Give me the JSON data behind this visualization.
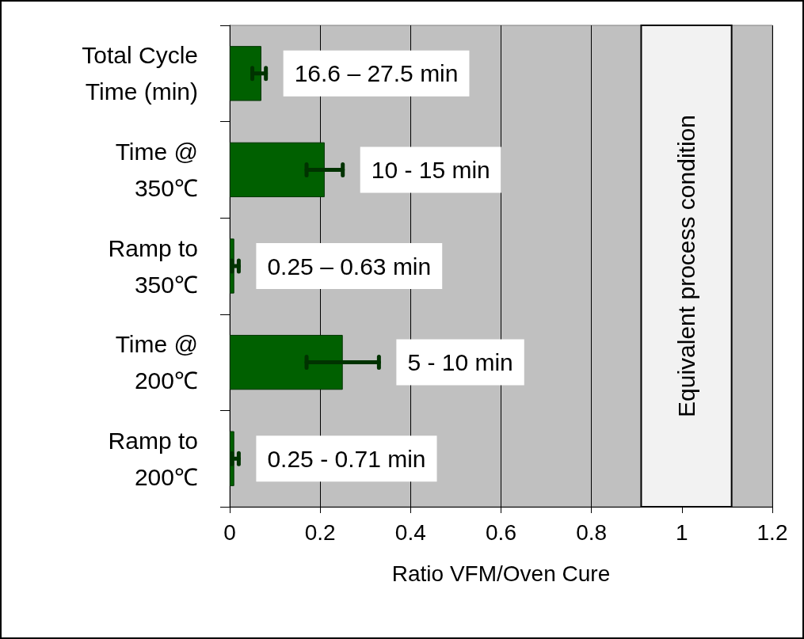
{
  "chart_data": {
    "type": "bar",
    "orientation": "horizontal",
    "xlabel": "Ratio VFM/Oven Cure",
    "categories": [
      "Total Cycle\nTime (min)",
      "Time @\n350℃",
      "Ramp to\n350℃",
      "Time @\n200℃",
      "Ramp to\n200℃"
    ],
    "values": [
      0.07,
      0.21,
      0.01,
      0.25,
      0.01
    ],
    "errors": [
      [
        0.05,
        0.08
      ],
      [
        0.17,
        0.25
      ],
      [
        0.005,
        0.02
      ],
      [
        0.17,
        0.33
      ],
      [
        0.005,
        0.02
      ]
    ],
    "color": "#006000",
    "xlim": [
      0,
      1.2
    ],
    "xticks": [
      0,
      0.2,
      0.4,
      0.6,
      0.8,
      1,
      1.2
    ],
    "grid": "x",
    "bands": [
      {
        "axis": "x",
        "from": 0.91,
        "to": 1.11,
        "label": "Equivalent process condition",
        "color": "#f2f2f2"
      }
    ],
    "annotations": [
      "16.6 – 27.5 min",
      "10 - 15 min",
      "0.25 – 0.63 min",
      "5 - 10 min",
      "0.25 - 0.71 min"
    ]
  }
}
